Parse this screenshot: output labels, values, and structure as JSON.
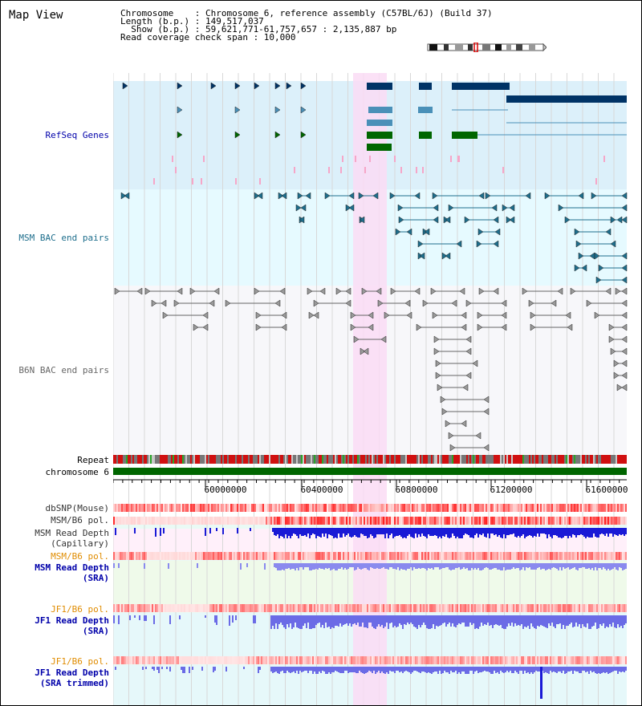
{
  "title": "Map View",
  "info": {
    "chromosome": "Chromosome    : Chromosome 6, reference assembly (C57BL/6J) (Build 37)",
    "length": "Length (b.p.) : 149,517,037",
    "show": "  Show (b.p.) : 59,621,771-61,757,657 : 2,135,887 bp",
    "coverage": "Read coverage check span : 10,000"
  },
  "tracks": {
    "refseq": "RefSeq Genes",
    "msm_bac": "MSM BAC end pairs",
    "b6n_bac": "B6N BAC end pairs",
    "repeat": "Repeat",
    "chromosome": "chromosome 6",
    "dbsnp": "dbSNP(Mouse)",
    "msm_b6_pol_1": "MSM/B6 pol.",
    "msm_depth_cap": "MSM Read Depth\n(Capillary)",
    "msm_b6_pol_2": "MSM/B6 pol.",
    "msm_depth_sra": "MSM Read Depth\n(SRA)",
    "jf1_b6_pol_1": "JF1/B6 pol.",
    "jf1_depth_sra": "JF1 Read Depth\n(SRA)",
    "jf1_b6_pol_2": "JF1/B6 pol.",
    "jf1_depth_trim": "JF1 Read Depth\n(SRA trimmed)"
  },
  "axis": {
    "ticks": [
      "60000000",
      "60400000",
      "60800000",
      "61200000",
      "61600000"
    ]
  },
  "colors": {
    "highlight": "#fadcf5",
    "refseq_bg": "#dcf0fa",
    "msm_bg": "#e6faff",
    "gene_blue": "#003366",
    "gene_teal": "#4a90b8",
    "gene_green": "#006600",
    "bac_teal": "#1e6e8c",
    "bac_gray": "#666666",
    "label_blue": "#0000aa",
    "label_orange": "#e08c00",
    "label_teal": "#1e6e8c",
    "label_gray": "#444444"
  }
}
